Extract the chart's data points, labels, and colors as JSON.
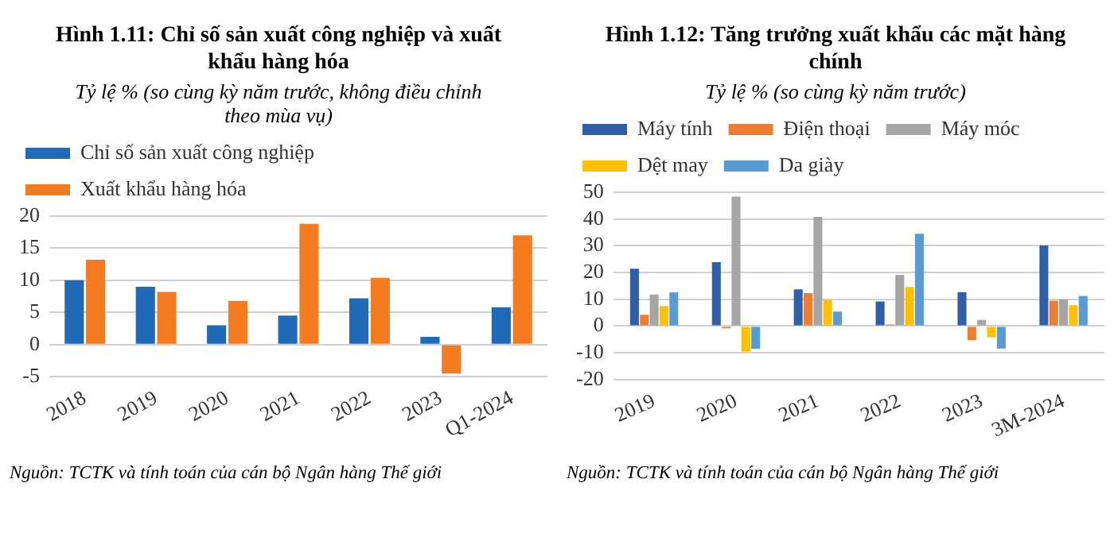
{
  "chart_data": [
    {
      "type": "bar",
      "title": "Hình 1.11: Chỉ số sản xuất công nghiệp và xuất khẩu hàng hóa",
      "subtitle": "Tỷ lệ % (so cùng kỳ năm trước, không điều chỉnh theo mùa vụ)",
      "categories": [
        "2018",
        "2019",
        "2020",
        "2021",
        "2022",
        "2023",
        "Q1-2024"
      ],
      "series": [
        {
          "name": "Chỉ số sản xuất công nghiệp",
          "color": "#1f6bb8",
          "values": [
            10,
            9,
            3,
            4.5,
            7.2,
            1.2,
            5.8
          ]
        },
        {
          "name": "Xuất khẩu hàng hóa",
          "color": "#f47b20",
          "values": [
            13.2,
            8.2,
            6.8,
            18.8,
            10.4,
            -4.5,
            17
          ]
        }
      ],
      "ylim": [
        -5,
        20
      ],
      "yticks": [
        -5,
        0,
        5,
        10,
        15,
        20
      ],
      "grid": "y",
      "legend": "top left",
      "annotations": [
        "Nguồn: TCTK và tính toán của cán bộ Ngân hàng Thế giới"
      ]
    },
    {
      "type": "bar",
      "title": "Hình 1.12: Tăng trưởng xuất khẩu các mặt hàng chính",
      "subtitle": "Tỷ lệ % (so cùng kỳ năm trước)",
      "categories": [
        "2019",
        "2020",
        "2021",
        "2022",
        "2023",
        "3M-2024"
      ],
      "series": [
        {
          "name": "Máy tính",
          "color": "#2f5fa8",
          "values": [
            21.4,
            23.9,
            13.7,
            9.2,
            12.7,
            30.1
          ]
        },
        {
          "name": "Điện thoại",
          "color": "#ed7d31",
          "values": [
            4.2,
            -0.8,
            12.3,
            0.6,
            -5.3,
            9.5
          ]
        },
        {
          "name": "Máy móc",
          "color": "#a5a5a5",
          "values": [
            11.8,
            48.4,
            40.8,
            19.1,
            2.3,
            9.9
          ]
        },
        {
          "name": "Dệt may",
          "color": "#ffc000",
          "values": [
            7.5,
            -9.6,
            9.8,
            14.6,
            -4.2,
            7.8
          ]
        },
        {
          "name": "Da giày",
          "color": "#5b9bd5",
          "values": [
            12.6,
            -8.5,
            5.4,
            34.5,
            -8.4,
            11.3
          ]
        }
      ],
      "ylim": [
        -20,
        50
      ],
      "yticks": [
        -20,
        -10,
        0,
        10,
        20,
        30,
        40,
        50
      ],
      "grid": "y",
      "legend": "top left",
      "annotations": [
        "Nguồn: TCTK và tính toán của cán bộ Ngân hàng Thế giới"
      ]
    }
  ]
}
